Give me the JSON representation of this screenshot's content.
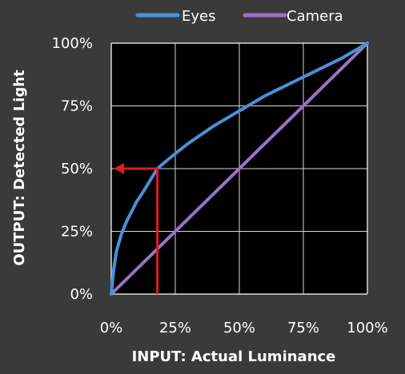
{
  "chart_data": {
    "type": "line",
    "xlabel_prefix": "INPUT:",
    "xlabel_rest": " Actual Luminance",
    "ylabel_prefix": "OUTPUT:",
    "ylabel_rest": " Detected Light",
    "xlim": [
      0,
      100
    ],
    "ylim": [
      0,
      100
    ],
    "x_ticks": [
      0,
      25,
      50,
      75,
      100
    ],
    "y_ticks": [
      0,
      25,
      50,
      75,
      100
    ],
    "x_tick_labels": [
      "0%",
      "25%",
      "50%",
      "75%",
      "100%"
    ],
    "y_tick_labels": [
      "0%",
      "25%",
      "50%",
      "75%",
      "100%"
    ],
    "grid": true,
    "legend_position": "top",
    "series": [
      {
        "name": "Eyes",
        "color": "#4a90d9",
        "x": [
          0,
          1,
          2,
          4,
          6,
          8,
          10,
          12,
          15,
          18,
          22,
          25,
          30,
          35,
          40,
          45,
          50,
          55,
          60,
          65,
          70,
          75,
          80,
          85,
          90,
          95,
          100
        ],
        "y": [
          0,
          10,
          17,
          24,
          29,
          33,
          37,
          40,
          45,
          50,
          53.5,
          56,
          60,
          63.5,
          67,
          70,
          73,
          76,
          79,
          81.5,
          84,
          86.5,
          89,
          91.5,
          94,
          97,
          100
        ]
      },
      {
        "name": "Camera",
        "color": "#9b72c7",
        "x": [
          0,
          100
        ],
        "y": [
          0,
          100
        ]
      }
    ],
    "annotation": {
      "color": "#e01b1b",
      "x": 18,
      "y": 50
    }
  }
}
